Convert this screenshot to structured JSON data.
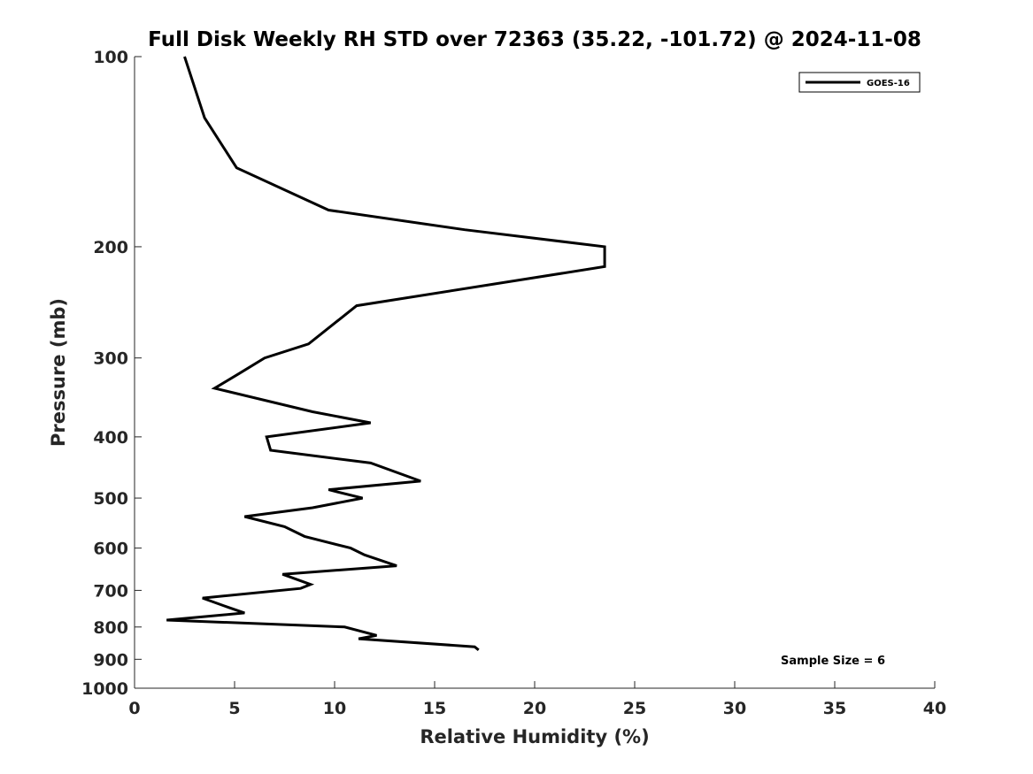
{
  "chart_data": {
    "type": "line",
    "title": "Full Disk Weekly RH STD over 72363 (35.22, -101.72) @ 2024-11-08",
    "xlabel": "Relative Humidity (%)",
    "ylabel": "Pressure (mb)",
    "xlim": [
      0,
      40
    ],
    "ylim": [
      1000,
      100
    ],
    "yscale": "log",
    "grid": false,
    "legend_placement": "top-right",
    "x_ticks": [
      "0",
      "5",
      "10",
      "15",
      "20",
      "25",
      "30",
      "35",
      "40"
    ],
    "y_ticks": [
      "100",
      "200",
      "300",
      "400",
      "500",
      "600",
      "700",
      "800",
      "900",
      "1000"
    ],
    "series": [
      {
        "name": "GOES-16",
        "color": "#000000",
        "x": [
          2.5,
          3.5,
          5.1,
          9.7,
          16.5,
          23.5,
          23.5,
          11.1,
          8.7,
          6.5,
          5.2,
          4.0,
          8.9,
          11.8,
          6.6,
          6.8,
          11.8,
          14.3,
          9.7,
          11.4,
          8.9,
          5.5,
          7.5,
          8.5,
          10.8,
          11.5,
          13.1,
          7.4,
          8.8,
          8.3,
          3.4,
          4.7,
          5.5,
          1.6,
          10.5,
          12.1,
          11.2,
          17.0,
          17.2
        ],
        "y": [
          100,
          125,
          150,
          175,
          188,
          200,
          215,
          248,
          285,
          300,
          318,
          335,
          365,
          380,
          400,
          420,
          440,
          470,
          485,
          500,
          518,
          535,
          555,
          575,
          600,
          615,
          640,
          660,
          685,
          695,
          720,
          745,
          760,
          780,
          800,
          825,
          835,
          860,
          870
        ]
      }
    ],
    "annotation": "Sample Size = 6"
  }
}
